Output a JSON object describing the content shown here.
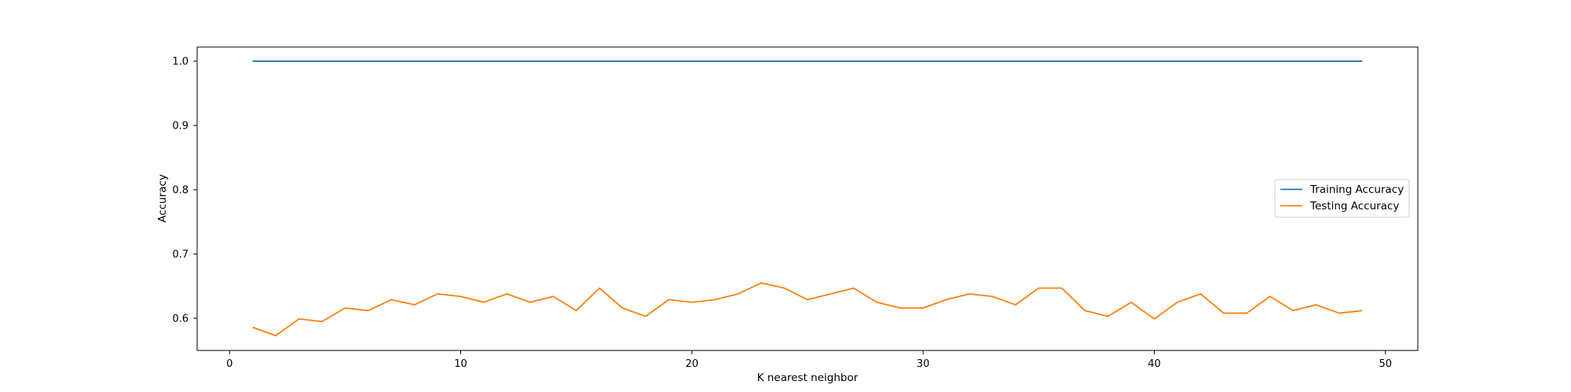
{
  "chart_data": {
    "type": "line",
    "title": "",
    "xlabel": "K nearest neighbor",
    "ylabel": "Accuracy",
    "xlim": [
      -1.4,
      51.4
    ],
    "ylim": [
      0.55,
      1.022
    ],
    "xticks": [
      0,
      10,
      20,
      30,
      40,
      50
    ],
    "xtick_labels": [
      "0",
      "10",
      "20",
      "30",
      "40",
      "50"
    ],
    "yticks": [
      0.6,
      0.7,
      0.8,
      0.9,
      1.0
    ],
    "ytick_labels": [
      "0.6",
      "0.7",
      "0.8",
      "0.9",
      "1.0"
    ],
    "grid": false,
    "legend_position": "center-right",
    "x": [
      1,
      2,
      3,
      4,
      5,
      6,
      7,
      8,
      9,
      10,
      11,
      12,
      13,
      14,
      15,
      16,
      17,
      18,
      19,
      20,
      21,
      22,
      23,
      24,
      25,
      26,
      27,
      28,
      29,
      30,
      31,
      32,
      33,
      34,
      35,
      36,
      37,
      38,
      39,
      40,
      41,
      42,
      43,
      44,
      45,
      46,
      47,
      48,
      49
    ],
    "series": [
      {
        "name": "Training Accuracy",
        "color": "#1f77b4",
        "values": [
          1.0,
          1.0,
          1.0,
          1.0,
          1.0,
          1.0,
          1.0,
          1.0,
          1.0,
          1.0,
          1.0,
          1.0,
          1.0,
          1.0,
          1.0,
          1.0,
          1.0,
          1.0,
          1.0,
          1.0,
          1.0,
          1.0,
          1.0,
          1.0,
          1.0,
          1.0,
          1.0,
          1.0,
          1.0,
          1.0,
          1.0,
          1.0,
          1.0,
          1.0,
          1.0,
          1.0,
          1.0,
          1.0,
          1.0,
          1.0,
          1.0,
          1.0,
          1.0,
          1.0,
          1.0,
          1.0,
          1.0,
          1.0,
          1.0
        ]
      },
      {
        "name": "Testing Accuracy",
        "color": "#ff7f0e",
        "values": [
          0.586,
          0.573,
          0.599,
          0.595,
          0.616,
          0.612,
          0.629,
          0.621,
          0.638,
          0.634,
          0.625,
          0.638,
          0.625,
          0.634,
          0.612,
          0.647,
          0.616,
          0.603,
          0.629,
          0.625,
          0.629,
          0.638,
          0.655,
          0.647,
          0.629,
          0.638,
          0.647,
          0.625,
          0.616,
          0.616,
          0.629,
          0.638,
          0.634,
          0.621,
          0.647,
          0.647,
          0.612,
          0.603,
          0.625,
          0.599,
          0.625,
          0.638,
          0.608,
          0.608,
          0.634,
          0.612,
          0.621,
          0.608,
          0.612
        ]
      }
    ]
  }
}
